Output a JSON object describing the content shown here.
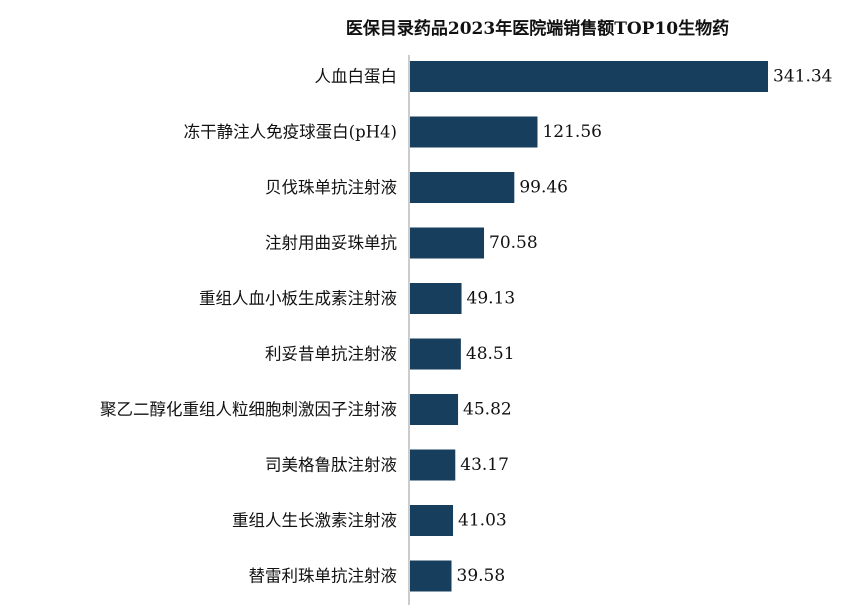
{
  "chart_data": {
    "type": "bar",
    "orientation": "horizontal",
    "title": "医保目录药品2023年医院端销售额TOP10生物药",
    "categories": [
      "人血白蛋白",
      "冻干静注人免疫球蛋白(pH4)",
      "贝伐珠单抗注射液",
      "注射用曲妥珠单抗",
      "重组人血小板生成素注射液",
      "利妥昔单抗注射液",
      "聚乙二醇化重组人粒细胞刺激因子注射液",
      "司美格鲁肽注射液",
      "重组人生长激素注射液",
      "替雷利珠单抗注射液"
    ],
    "values": [
      341.34,
      121.56,
      99.46,
      70.58,
      49.13,
      48.51,
      45.82,
      43.17,
      41.03,
      39.58
    ],
    "value_labels": [
      "341.34",
      "121.56",
      "99.46",
      "70.58",
      "49.13",
      "48.51",
      "45.82",
      "43.17",
      "41.03",
      "39.58"
    ],
    "xlabel": "",
    "ylabel": "",
    "xlim": [
      0,
      341.34
    ],
    "grid": false,
    "legend": "none",
    "bar_color": "#173e5c"
  }
}
